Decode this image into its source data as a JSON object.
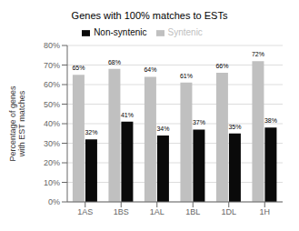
{
  "chart_data": {
    "type": "bar",
    "title": "Genes with 100% matches to ESTs",
    "categories": [
      "1AS",
      "1BS",
      "1AL",
      "1BL",
      "1DL",
      "1H"
    ],
    "series": [
      {
        "name": "Syntenic",
        "color": "#c0c0c0",
        "values": [
          65,
          68,
          64,
          61,
          66,
          72
        ],
        "value_labels": [
          "65%",
          "68%",
          "64%",
          "61%",
          "66%",
          "72%"
        ]
      },
      {
        "name": "Non-syntenic",
        "color": "#0a0a0a",
        "values": [
          32,
          41,
          34,
          37,
          35,
          38
        ],
        "value_labels": [
          "32%",
          "41%",
          "34%",
          "37%",
          "35%",
          "38%"
        ]
      }
    ],
    "ylabel": "Percentage of genes\nwith EST matches",
    "ylim": [
      0,
      80
    ],
    "yticks": [
      {
        "value": 0,
        "label": "0%"
      },
      {
        "value": 10,
        "label": "10%"
      },
      {
        "value": 20,
        "label": "20%"
      },
      {
        "value": 30,
        "label": "30%"
      },
      {
        "value": 40,
        "label": "40%"
      },
      {
        "value": 50,
        "label": "50%"
      },
      {
        "value": 60,
        "label": "60%"
      },
      {
        "value": 70,
        "label": "70%"
      },
      {
        "value": 80,
        "label": "80%"
      }
    ],
    "grid": true,
    "legend": "top",
    "data_labels": true
  }
}
